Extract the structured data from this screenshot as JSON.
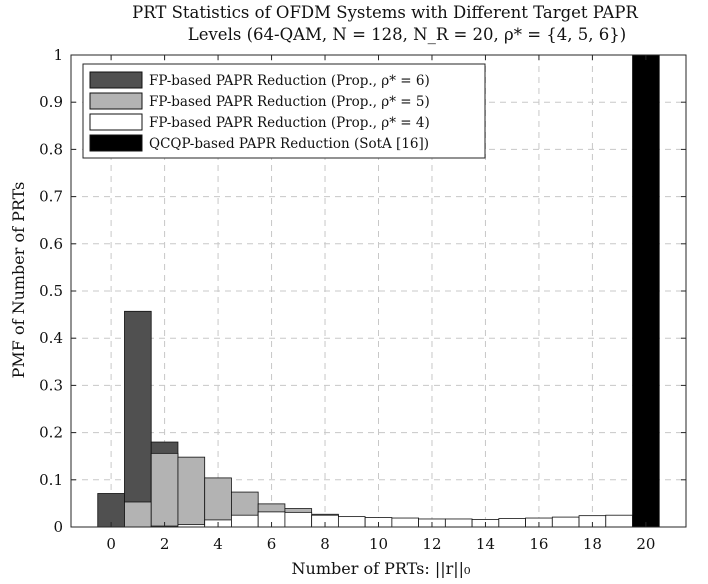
{
  "chart_data": {
    "type": "bar",
    "title_line1": "PRT Statistics of OFDM Systems with Different Target PAPR",
    "title_line2": "Levels (64-QAM, N = 128, N_R = 20, ρ* = {4, 5, 6})",
    "xlabel": "Number of PRTs: ||r||₀",
    "ylabel": "PMF of Number of PRTs",
    "xlim": [
      -1.5,
      21.5
    ],
    "ylim": [
      0,
      1
    ],
    "x_ticks": [
      0,
      2,
      4,
      6,
      8,
      10,
      12,
      14,
      16,
      18,
      20
    ],
    "x_tick_labels": [
      "0",
      "2",
      "4",
      "6",
      "8",
      "10",
      "12",
      "14",
      "16",
      "18",
      "20"
    ],
    "y_ticks": [
      0,
      0.1,
      0.2,
      0.3,
      0.4,
      0.5,
      0.6,
      0.7,
      0.8,
      0.9,
      1
    ],
    "y_tick_labels": [
      "0",
      "0.1",
      "0.2",
      "0.3",
      "0.4",
      "0.5",
      "0.6",
      "0.7",
      "0.8",
      "0.9",
      "1"
    ],
    "grid": true,
    "legend_position": "top-left",
    "bar_style": "overlaid",
    "categories": [
      0,
      1,
      2,
      3,
      4,
      5,
      6,
      7,
      8,
      9,
      10,
      11,
      12,
      13,
      14,
      15,
      16,
      17,
      18,
      19,
      20
    ],
    "series": [
      {
        "name": "FP-based PAPR Reduction (Prop., ρ* = 6)",
        "color": "#505050",
        "values": [
          0.071,
          0.457,
          0.18,
          0.105,
          0.048,
          0.022,
          0.01,
          0.005,
          0.002,
          0.001,
          0,
          0,
          0,
          0,
          0,
          0,
          0,
          0,
          0,
          0,
          0
        ]
      },
      {
        "name": "FP-based PAPR Reduction (Prop., ρ* = 5)",
        "color": "#b3b3b3",
        "values": [
          0,
          0.053,
          0.156,
          0.148,
          0.104,
          0.074,
          0.049,
          0.039,
          0.027,
          0.02,
          0.015,
          0.012,
          0.01,
          0.008,
          0.006,
          0.005,
          0.004,
          0.003,
          0.002,
          0.001,
          0
        ]
      },
      {
        "name": "FP-based PAPR Reduction (Prop., ρ* = 4)",
        "color": "#ffffff",
        "values": [
          0,
          0,
          0.002,
          0.005,
          0.015,
          0.025,
          0.032,
          0.031,
          0.025,
          0.022,
          0.02,
          0.019,
          0.017,
          0.017,
          0.016,
          0.018,
          0.019,
          0.021,
          0.024,
          0.025,
          0
        ]
      },
      {
        "name": "QCQP-based PAPR Reduction (SotA [16])",
        "color": "#000000",
        "values": [
          0,
          0,
          0,
          0,
          0,
          0,
          0,
          0,
          0,
          0,
          0,
          0,
          0,
          0,
          0,
          0,
          0,
          0,
          0,
          0,
          1.0
        ]
      }
    ]
  }
}
